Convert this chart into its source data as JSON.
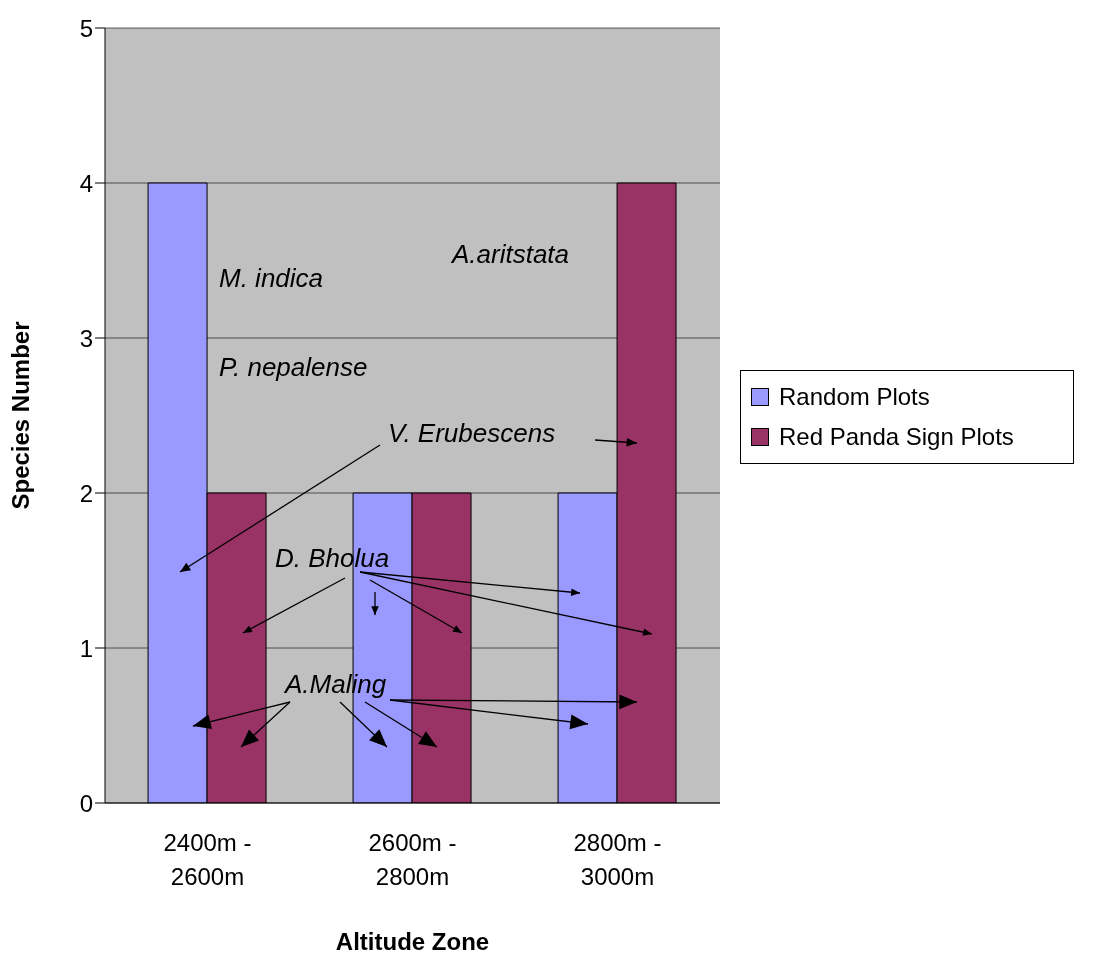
{
  "chart_data": {
    "type": "bar",
    "xlabel": "Altitude Zone",
    "ylabel": "Species Number",
    "categories": [
      "2400m - 2600m",
      "2600m - 2800m",
      "2800m - 3000m"
    ],
    "series": [
      {
        "name": "Random Plots",
        "color": "#9999ff",
        "values": [
          4,
          2,
          2
        ]
      },
      {
        "name": "Red Panda Sign Plots",
        "color": "#993366",
        "values": [
          2,
          2,
          4
        ]
      }
    ],
    "ylim": [
      0,
      5
    ],
    "yticks": [
      0,
      1,
      2,
      3,
      4,
      5
    ],
    "grid": "y",
    "legend": "right",
    "annotations": [
      "M. indica",
      "A.aritstata",
      "P. nepalense",
      "V. Erubescens",
      "D. Bholua",
      "A.Maling"
    ]
  }
}
